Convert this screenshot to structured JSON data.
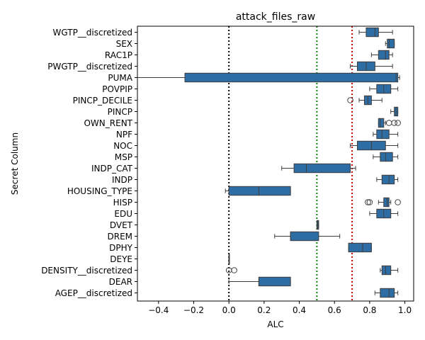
{
  "chart_data": {
    "type": "boxplot",
    "orientation": "horizontal",
    "title": "attack_files_raw",
    "xlabel": "ALC",
    "ylabel": "Secret Column",
    "xlim": [
      -0.52,
      1.05
    ],
    "xticks": [
      -0.4,
      -0.2,
      0.0,
      0.2,
      0.4,
      0.6,
      0.8,
      1.0
    ],
    "xtick_labels": [
      "−0.4",
      "−0.2",
      "0.0",
      "0.2",
      "0.4",
      "0.6",
      "0.8",
      "1.0"
    ],
    "grid": false,
    "box_color": "#2e6da4",
    "reference_lines": [
      {
        "x": 0.0,
        "color": "#000000",
        "style": "dotted"
      },
      {
        "x": 0.5,
        "color": "#008000",
        "style": "dotted"
      },
      {
        "x": 0.7,
        "color": "#cc0000",
        "style": "dotted"
      }
    ],
    "categories": [
      {
        "name": "WGTP__discretized",
        "whislo": 0.74,
        "q1": 0.78,
        "median": 0.83,
        "q3": 0.85,
        "whishi": 0.93,
        "fliers": []
      },
      {
        "name": "SEX",
        "whislo": 0.89,
        "q1": 0.9,
        "median": 0.91,
        "q3": 0.94,
        "whishi": 0.94,
        "fliers": []
      },
      {
        "name": "RAC1P",
        "whislo": 0.81,
        "q1": 0.85,
        "median": 0.89,
        "q3": 0.91,
        "whishi": 0.93,
        "fliers": []
      },
      {
        "name": "PWGTP__discretized",
        "whislo": 0.69,
        "q1": 0.73,
        "median": 0.78,
        "q3": 0.83,
        "whishi": 0.93,
        "fliers": []
      },
      {
        "name": "PUMA",
        "whislo": -0.52,
        "q1": -0.25,
        "median": 0.95,
        "q3": 0.96,
        "whishi": 0.97,
        "fliers": []
      },
      {
        "name": "POVPIP",
        "whislo": 0.8,
        "q1": 0.84,
        "median": 0.88,
        "q3": 0.92,
        "whishi": 0.96,
        "fliers": []
      },
      {
        "name": "PINCP_DECILE",
        "whislo": 0.74,
        "q1": 0.77,
        "median": 0.79,
        "q3": 0.81,
        "whishi": 0.87,
        "fliers": [
          0.69
        ]
      },
      {
        "name": "PINCP",
        "whislo": 0.92,
        "q1": 0.94,
        "median": 0.95,
        "q3": 0.96,
        "whishi": 0.96,
        "fliers": []
      },
      {
        "name": "OWN_RENT",
        "whislo": 0.85,
        "q1": 0.85,
        "median": 0.86,
        "q3": 0.88,
        "whishi": 0.89,
        "fliers": [
          0.91,
          0.94,
          0.96
        ]
      },
      {
        "name": "NPF",
        "whislo": 0.82,
        "q1": 0.84,
        "median": 0.87,
        "q3": 0.91,
        "whishi": 0.96,
        "fliers": []
      },
      {
        "name": "NOC",
        "whislo": 0.69,
        "q1": 0.73,
        "median": 0.81,
        "q3": 0.89,
        "whishi": 0.96,
        "fliers": []
      },
      {
        "name": "MSP",
        "whislo": 0.82,
        "q1": 0.86,
        "median": 0.89,
        "q3": 0.93,
        "whishi": 0.96,
        "fliers": []
      },
      {
        "name": "INDP_CAT",
        "whislo": 0.3,
        "q1": 0.37,
        "median": 0.44,
        "q3": 0.69,
        "whishi": 0.72,
        "fliers": []
      },
      {
        "name": "INDP",
        "whislo": 0.84,
        "q1": 0.87,
        "median": 0.91,
        "q3": 0.94,
        "whishi": 0.96,
        "fliers": []
      },
      {
        "name": "HOUSING_TYPE",
        "whislo": -0.02,
        "q1": 0.0,
        "median": 0.17,
        "q3": 0.35,
        "whishi": 0.35,
        "fliers": []
      },
      {
        "name": "HISP",
        "whislo": 0.85,
        "q1": 0.88,
        "median": 0.9,
        "q3": 0.91,
        "whishi": 0.92,
        "fliers": [
          0.79,
          0.8,
          0.96
        ]
      },
      {
        "name": "EDU",
        "whislo": 0.8,
        "q1": 0.84,
        "median": 0.88,
        "q3": 0.92,
        "whishi": 0.96,
        "fliers": []
      },
      {
        "name": "DVET",
        "whislo": 0.5,
        "q1": 0.5,
        "median": 0.505,
        "q3": 0.51,
        "whishi": 0.51,
        "fliers": []
      },
      {
        "name": "DREM",
        "whislo": 0.26,
        "q1": 0.35,
        "median": 0.35,
        "q3": 0.51,
        "whishi": 0.63,
        "fliers": []
      },
      {
        "name": "DPHY",
        "whislo": 0.68,
        "q1": 0.68,
        "median": 0.76,
        "q3": 0.81,
        "whishi": 0.81,
        "fliers": []
      },
      {
        "name": "DEYE",
        "whislo": 0.0,
        "q1": 0.0,
        "median": 0.0,
        "q3": 0.0,
        "whishi": 0.0,
        "fliers": []
      },
      {
        "name": "DENSITY__discretized",
        "whislo": 0.86,
        "q1": 0.87,
        "median": 0.89,
        "q3": 0.92,
        "whishi": 0.96,
        "fliers": [
          0.0,
          0.03
        ]
      },
      {
        "name": "DEAR",
        "whislo": 0.0,
        "q1": 0.17,
        "median": 0.17,
        "q3": 0.35,
        "whishi": 0.35,
        "fliers": []
      },
      {
        "name": "AGEP__discretized",
        "whislo": 0.83,
        "q1": 0.86,
        "median": 0.91,
        "q3": 0.94,
        "whishi": 0.96,
        "fliers": []
      }
    ]
  }
}
